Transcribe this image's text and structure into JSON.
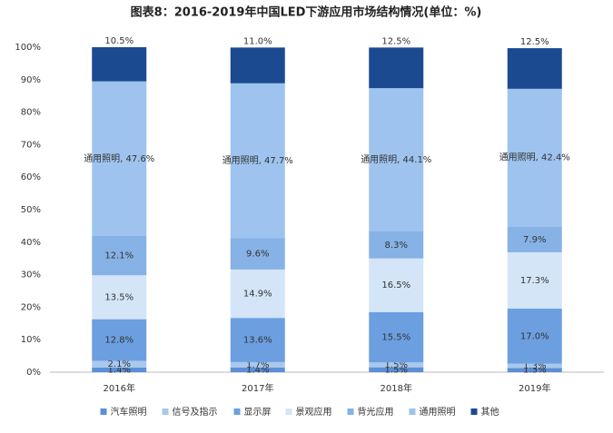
{
  "chart_data": {
    "type": "stacked_bar",
    "title": "图表8：2016-2019年中国LED下游应用市场结构情况(单位：%)",
    "categories": [
      "2016年",
      "2017年",
      "2018年",
      "2019年"
    ],
    "series": [
      {
        "name": "汽车照明",
        "color": "#5b8fd6",
        "values": [
          1.4,
          1.4,
          1.5,
          1.3
        ],
        "value_labels": [
          "1.4%",
          "1.4%",
          "1.5%",
          "1.3%"
        ]
      },
      {
        "name": "信号及指示",
        "color": "#a9c8ec",
        "values": [
          2.1,
          1.7,
          1.5,
          1.3
        ],
        "value_labels": [
          "2.1%",
          "1.7%",
          "1.5%",
          "1.3%"
        ]
      },
      {
        "name": "显示屏",
        "color": "#6b9fe0",
        "values": [
          12.8,
          13.6,
          15.5,
          17.0
        ],
        "value_labels": [
          "12.8%",
          "13.6%",
          "15.5%",
          "17.0%"
        ]
      },
      {
        "name": "景观应用",
        "color": "#d4e5f8",
        "values": [
          13.5,
          14.9,
          16.5,
          17.3
        ],
        "value_labels": [
          "13.5%",
          "14.9%",
          "16.5%",
          "17.3%"
        ]
      },
      {
        "name": "背光应用",
        "color": "#86b2e6",
        "values": [
          12.1,
          9.6,
          8.3,
          7.9
        ],
        "value_labels": [
          "12.1%",
          "9.6%",
          "8.3%",
          "7.9%"
        ]
      },
      {
        "name": "通用照明",
        "color": "#9ec3ee",
        "values": [
          47.6,
          47.7,
          44.1,
          42.4
        ],
        "value_labels": [
          "通用照明, 47.6%",
          "通用照明, 47.7%",
          "通用照明, 44.1%",
          "通用照明, 42.4%"
        ]
      },
      {
        "name": "其他",
        "color": "#1b4a91",
        "values": [
          10.5,
          11.0,
          12.5,
          12.5
        ],
        "value_labels": [
          "10.5%",
          "11.0%",
          "12.5%",
          "12.5%"
        ]
      }
    ],
    "ylim": [
      0,
      100
    ],
    "yticks": [
      {
        "value": 0,
        "label": "0%"
      },
      {
        "value": 10,
        "label": "10%"
      },
      {
        "value": 20,
        "label": "20%"
      },
      {
        "value": 30,
        "label": "30%"
      },
      {
        "value": 40,
        "label": "40%"
      },
      {
        "value": 50,
        "label": "50%"
      },
      {
        "value": 60,
        "label": "60%"
      },
      {
        "value": 70,
        "label": "70%"
      },
      {
        "value": 80,
        "label": "80%"
      },
      {
        "value": 90,
        "label": "90%"
      },
      {
        "value": 100,
        "label": "100%"
      }
    ],
    "legend": "bottom"
  }
}
